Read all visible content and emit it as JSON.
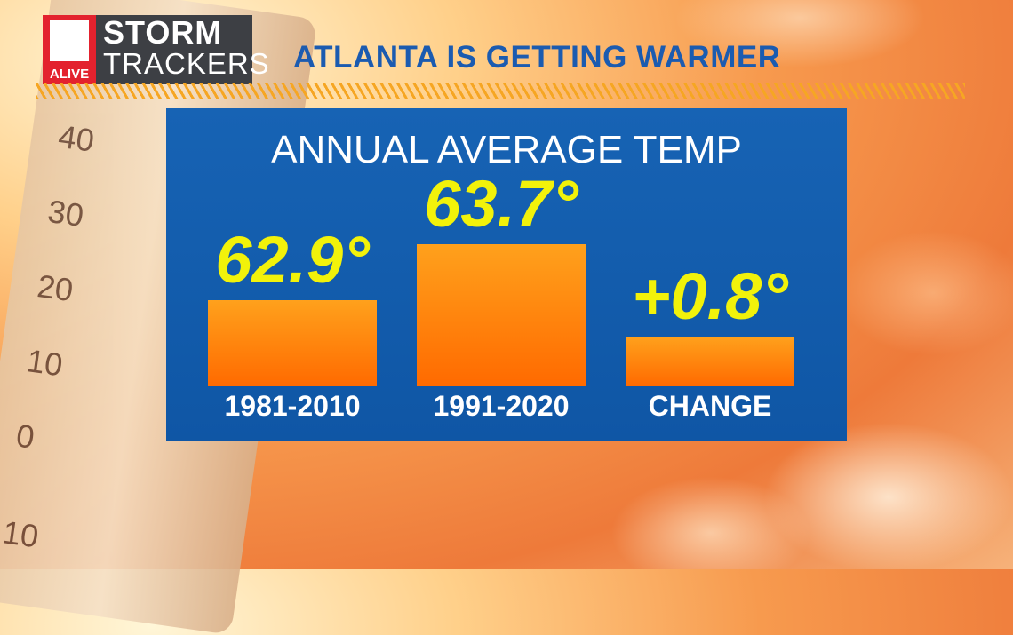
{
  "logo": {
    "station": "ALIVE",
    "line1": "STORM",
    "line2": "TRACKERS"
  },
  "headline": "ATLANTA IS GETTING WARMER",
  "thermometer_ticks": [
    "40",
    "30",
    "20",
    "10",
    "0",
    "10"
  ],
  "colors": {
    "panel": "#1763b4",
    "bar": "#ff8a0d",
    "value_text": "#f2f20a",
    "headline": "#1b5bb0"
  },
  "chart_data": {
    "type": "bar",
    "title": "ANNUAL AVERAGE TEMP",
    "categories": [
      "1981-2010",
      "1991-2020",
      "CHANGE"
    ],
    "values": [
      62.9,
      63.7,
      0.8
    ],
    "labels": [
      "62.9°",
      "63.7°",
      "+0.8°"
    ],
    "grid": false
  }
}
